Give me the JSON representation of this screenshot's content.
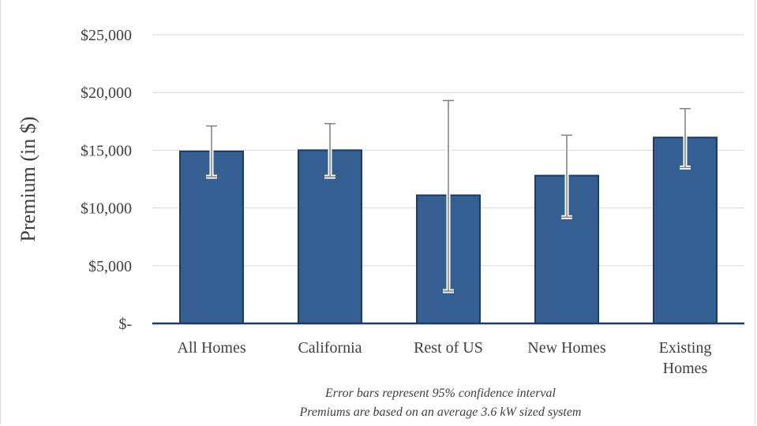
{
  "chart_data": {
    "type": "bar",
    "categories": [
      [
        "All Homes"
      ],
      [
        "California"
      ],
      [
        "Rest of US"
      ],
      [
        "New Homes"
      ],
      [
        "Existing",
        "Homes"
      ]
    ],
    "values": [
      14900,
      15000,
      11100,
      12800,
      16100
    ],
    "error_low": [
      12700,
      12700,
      2800,
      9200,
      13500
    ],
    "error_high": [
      17100,
      17300,
      19300,
      16300,
      18600
    ],
    "ylabel": "Premium (in $)",
    "ylim": [
      0,
      25000
    ],
    "yticks": [
      0,
      5000,
      10000,
      15000,
      20000,
      25000
    ],
    "ytick_labels": [
      "$-",
      "$5,000",
      "$10,000",
      "$15,000",
      "$20,000",
      "$25,000"
    ],
    "grid": true,
    "notes": [
      "Error bars represent 95% confidence interval",
      "Premiums are based on an average 3.6 kW sized system"
    ],
    "colors": {
      "bar_fill": "#365f91",
      "bar_stroke": "#1f3864",
      "grid": "#d9d9d9",
      "axis": "#1f3864",
      "text": "#404040"
    }
  }
}
